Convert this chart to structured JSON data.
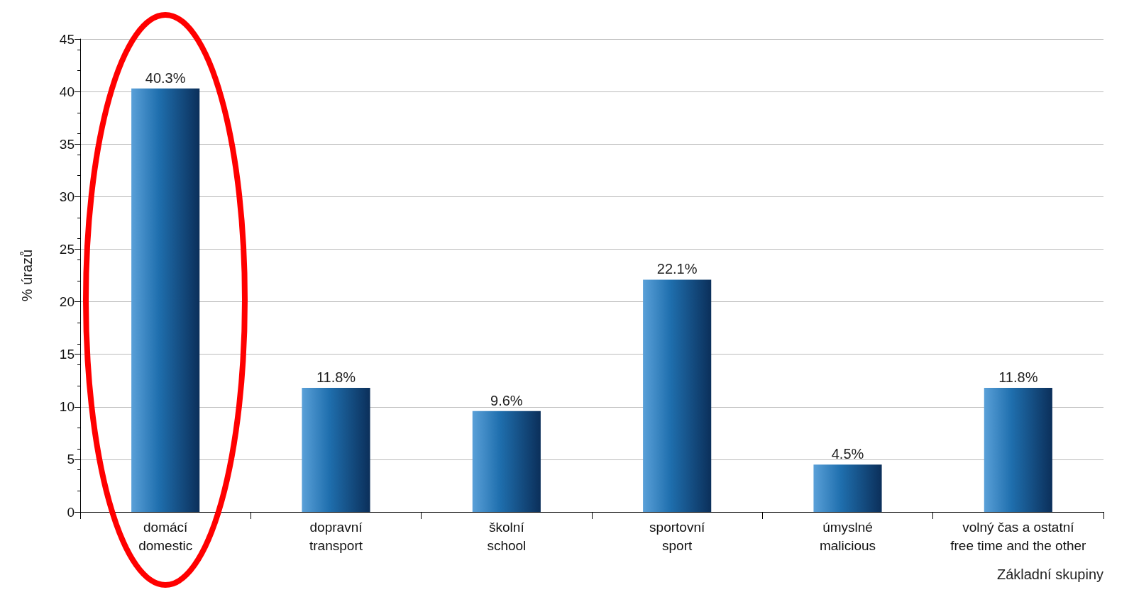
{
  "chart_data": {
    "type": "bar",
    "xlabel": "Základní skupiny",
    "ylabel": "% úrazů",
    "categories": [
      "domácí\ndomestic",
      "dopravní\ntransport",
      "školní\nschool",
      "sportovní\nsport",
      "úmyslné\nmalicious",
      "volný čas a ostatní\nfree time and the other"
    ],
    "values": [
      40.3,
      11.8,
      9.6,
      22.1,
      4.5,
      11.8
    ],
    "value_labels": [
      "40.3%",
      "11.8%",
      "9.6%",
      "22.1%",
      "4.5%",
      "11.8%"
    ],
    "color": "#1f6fae",
    "ylim": [
      0,
      45
    ],
    "yticks": [
      0,
      5,
      10,
      15,
      20,
      25,
      30,
      35,
      40,
      45
    ],
    "grid": "y"
  }
}
